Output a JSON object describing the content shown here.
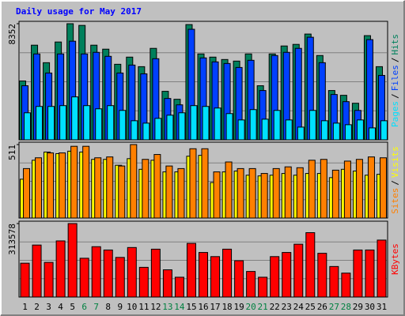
{
  "title": "Daily usage for May 2017",
  "legend_separator": "/",
  "chart_data": [
    {
      "type": "bar",
      "ylim": [
        0,
        8352
      ],
      "yticks": [
        8352
      ],
      "series": [
        {
          "name": "Hits",
          "color": "#00805c",
          "values": [
            4233,
            6807,
            5548,
            7036,
            8352,
            8230,
            6807,
            6521,
            5434,
            5949,
            5262,
            6578,
            3489,
            2917,
            8290,
            6178,
            5949,
            5777,
            5663,
            6178,
            3890,
            6178,
            6750,
            6864,
            7608,
            6063,
            3546,
            3203,
            2631,
            7493,
            5262
          ]
        },
        {
          "name": "Files",
          "color": "#0040ff",
          "values": [
            3890,
            6178,
            4805,
            6178,
            7093,
            6178,
            6292,
            6006,
            4805,
            5377,
            4748,
            5834,
            2974,
            2517,
            7951,
            5892,
            5606,
            5491,
            5205,
            5720,
            3546,
            6063,
            6292,
            6578,
            7379,
            5548,
            3260,
            2746,
            2116,
            7207,
            4633
          ]
        },
        {
          "name": "Pages",
          "color": "#00e0ff",
          "values": [
            1945,
            2402,
            2402,
            2460,
            3089,
            2460,
            2231,
            2460,
            2116,
            1373,
            1201,
            1544,
            1773,
            1945,
            2460,
            2402,
            2288,
            1888,
            1430,
            2174,
            1487,
            2116,
            1430,
            915,
            2116,
            1373,
            1201,
            1087,
            1430,
            858,
            1373
          ]
        }
      ]
    },
    {
      "type": "bar",
      "ylim": [
        0,
        511
      ],
      "yticks": [
        511
      ],
      "series": [
        {
          "name": "Visits",
          "color": "#ffff00",
          "values": [
            270,
            402,
            459,
            448,
            465,
            459,
            408,
            408,
            367,
            413,
            339,
            402,
            321,
            321,
            430,
            436,
            247,
            321,
            327,
            298,
            293,
            298,
            310,
            298,
            310,
            310,
            281,
            339,
            327,
            298,
            304
          ]
        },
        {
          "name": "Sites",
          "color": "#ff8000",
          "values": [
            344,
            419,
            453,
            453,
            499,
            499,
            419,
            425,
            362,
            511,
            408,
            442,
            362,
            344,
            482,
            482,
            321,
            390,
            344,
            344,
            310,
            344,
            356,
            350,
            402,
            408,
            333,
            396,
            408,
            425,
            419
          ]
        }
      ]
    },
    {
      "type": "bar",
      "ylim": [
        0,
        313578
      ],
      "yticks": [
        313578
      ],
      "categories": [
        "1",
        "2",
        "3",
        "4",
        "5",
        "6",
        "7",
        "8",
        "9",
        "10",
        "11",
        "12",
        "13",
        "14",
        "15",
        "16",
        "17",
        "18",
        "19",
        "20",
        "21",
        "22",
        "23",
        "24",
        "25",
        "26",
        "27",
        "28",
        "29",
        "30",
        "31"
      ],
      "category_colors": [
        "#000000",
        "#000000",
        "#000000",
        "#000000",
        "#000000",
        "#008040",
        "#008040",
        "#000000",
        "#000000",
        "#000000",
        "#000000",
        "#000000",
        "#008040",
        "#008040",
        "#000000",
        "#000000",
        "#000000",
        "#000000",
        "#000000",
        "#008040",
        "#008040",
        "#000000",
        "#000000",
        "#000000",
        "#000000",
        "#000000",
        "#008040",
        "#008040",
        "#000000",
        "#000000",
        "#000000"
      ],
      "series": [
        {
          "name": "KBytes",
          "color": "#ff0000",
          "values": [
            144443,
            221949,
            147966,
            239564,
            313578,
            165581,
            214903,
            200811,
            169104,
            211380,
            126828,
            204334,
            116259,
            84552,
            228995,
            190242,
            172627,
            204334,
            155012,
            109213,
            84552,
            172627,
            190242,
            225472,
            274794,
            186719,
            130351,
            102167,
            200811,
            200811,
            243087
          ]
        }
      ]
    }
  ]
}
